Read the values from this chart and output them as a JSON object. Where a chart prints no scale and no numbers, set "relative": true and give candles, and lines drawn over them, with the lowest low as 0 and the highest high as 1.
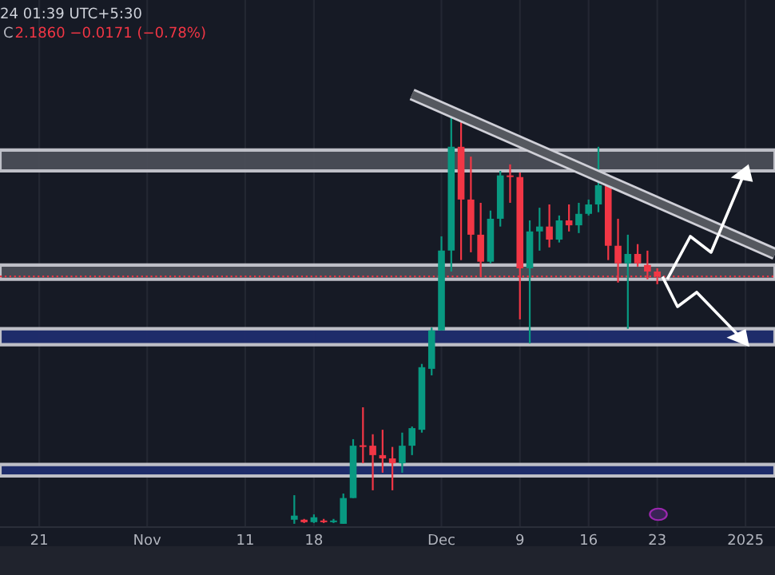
{
  "chart_data": {
    "type": "candlestick",
    "relative": true,
    "x": [
      "2024-11-16",
      "2024-11-17",
      "2024-11-18",
      "2024-11-19",
      "2024-11-20",
      "2024-11-21",
      "2024-11-22",
      "2024-11-23",
      "2024-11-24",
      "2024-11-25",
      "2024-11-26",
      "2024-11-27",
      "2024-11-28",
      "2024-11-29",
      "2024-11-30",
      "2024-12-01",
      "2024-12-02",
      "2024-12-03",
      "2024-12-04",
      "2024-12-05",
      "2024-12-06",
      "2024-12-07",
      "2024-12-08",
      "2024-12-09",
      "2024-12-10",
      "2024-12-11",
      "2024-12-12",
      "2024-12-13",
      "2024-12-14",
      "2024-12-15",
      "2024-12-16",
      "2024-12-17",
      "2024-12-18",
      "2024-12-19",
      "2024-12-20",
      "2024-12-21",
      "2024-12-22",
      "2024-12-23"
    ],
    "ohlc": [
      [
        0.01,
        0.07,
        0,
        0.02
      ],
      [
        0.01,
        0.012,
        0.002,
        0.004
      ],
      [
        0.004,
        0.023,
        0.002,
        0.016
      ],
      [
        0.008,
        0.012,
        0.002,
        0.004
      ],
      [
        0.004,
        0.012,
        0.002,
        0.008
      ],
      [
        0.0,
        0.074,
        0.0,
        0.063
      ],
      [
        0.063,
        0.207,
        0.063,
        0.191
      ],
      [
        0.191,
        0.285,
        0.148,
        0.188
      ],
      [
        0.191,
        0.219,
        0.082,
        0.168
      ],
      [
        0.168,
        0.23,
        0.125,
        0.16
      ],
      [
        0.16,
        0.188,
        0.082,
        0.148
      ],
      [
        0.148,
        0.223,
        0.125,
        0.191
      ],
      [
        0.191,
        0.238,
        0.168,
        0.234
      ],
      [
        0.23,
        0.391,
        0.223,
        0.383
      ],
      [
        0.379,
        0.48,
        0.363,
        0.473
      ],
      [
        0.473,
        0.703,
        0.473,
        0.668
      ],
      [
        0.668,
        1.0,
        0.617,
        0.922
      ],
      [
        0.922,
        0.988,
        0.645,
        0.793
      ],
      [
        0.793,
        0.898,
        0.664,
        0.707
      ],
      [
        0.707,
        0.785,
        0.605,
        0.641
      ],
      [
        0.641,
        0.766,
        0.637,
        0.746
      ],
      [
        0.746,
        0.863,
        0.727,
        0.852
      ],
      [
        0.852,
        0.879,
        0.785,
        0.848
      ],
      [
        0.848,
        0.859,
        0.5,
        0.625
      ],
      [
        0.625,
        0.742,
        0.441,
        0.715
      ],
      [
        0.715,
        0.773,
        0.668,
        0.727
      ],
      [
        0.727,
        0.781,
        0.676,
        0.695
      ],
      [
        0.695,
        0.754,
        0.688,
        0.742
      ],
      [
        0.742,
        0.781,
        0.715,
        0.73
      ],
      [
        0.73,
        0.785,
        0.711,
        0.758
      ],
      [
        0.758,
        0.793,
        0.754,
        0.781
      ],
      [
        0.781,
        0.922,
        0.762,
        0.828
      ],
      [
        0.828,
        0.828,
        0.645,
        0.68
      ],
      [
        0.68,
        0.746,
        0.59,
        0.637
      ],
      [
        0.637,
        0.707,
        0.477,
        0.66
      ],
      [
        0.66,
        0.684,
        0.629,
        0.637
      ],
      [
        0.633,
        0.668,
        0.598,
        0.617
      ],
      [
        0.617,
        0.625,
        0.586,
        0.605
      ]
    ],
    "colors": [
      "#089981",
      "#f23645",
      "#089981",
      "#f23645",
      "#089981",
      "#089981",
      "#089981",
      "#f23645",
      "#f23645",
      "#f23645",
      "#f23645",
      "#089981",
      "#089981",
      "#089981",
      "#089981",
      "#089981",
      "#089981",
      "#f23645",
      "#f23645",
      "#f23645",
      "#089981",
      "#089981",
      "#f23645",
      "#f23645",
      "#089981",
      "#089981",
      "#f23645",
      "#089981",
      "#f23645",
      "#089981",
      "#089981",
      "#089981",
      "#f23645",
      "#f23645",
      "#089981",
      "#f23645",
      "#f23645",
      "#f23645"
    ],
    "xlim": [
      "2024-10-17",
      "2025-01-04"
    ],
    "xticks": [
      {
        "value": "2024-10-21",
        "label": "21"
      },
      {
        "value": "2024-11-01",
        "label": "Nov"
      },
      {
        "value": "2024-11-11",
        "label": "11"
      },
      {
        "value": "2024-11-18",
        "label": "18"
      },
      {
        "value": "2024-12-01",
        "label": "Dec"
      },
      {
        "value": "2024-12-09",
        "label": "9"
      },
      {
        "value": "2024-12-16",
        "label": "16"
      },
      {
        "value": "2024-12-23",
        "label": "23"
      },
      {
        "value": "2025-01-01",
        "label": "2025"
      }
    ],
    "bands": [
      {
        "axis": "y",
        "from": 0.863,
        "to": 0.914,
        "color": "#4a4d57"
      },
      {
        "axis": "y",
        "from": 0.598,
        "to": 0.633,
        "color": "#4a4d57"
      },
      {
        "axis": "y",
        "from": 0.438,
        "to": 0.477,
        "color": "#1f2d6e"
      },
      {
        "axis": "y",
        "from": 0.117,
        "to": 0.145,
        "color": "#1f2d6e"
      }
    ],
    "ref_lines": [
      {
        "axis": "y",
        "value": 0.605,
        "color": "#f23645",
        "line_style": "dotted"
      }
    ],
    "annotations": [
      "24 01:39 UTC+5:30",
      "C",
      "2.1860 −0.0171 (−0.78%)"
    ],
    "series": [
      {
        "type": "line",
        "x": [
          "2024-11-28",
          "2025-01-04"
        ],
        "values": [
          1.05,
          0.66
        ],
        "color": "#55585f"
      }
    ],
    "grid": "x"
  }
}
